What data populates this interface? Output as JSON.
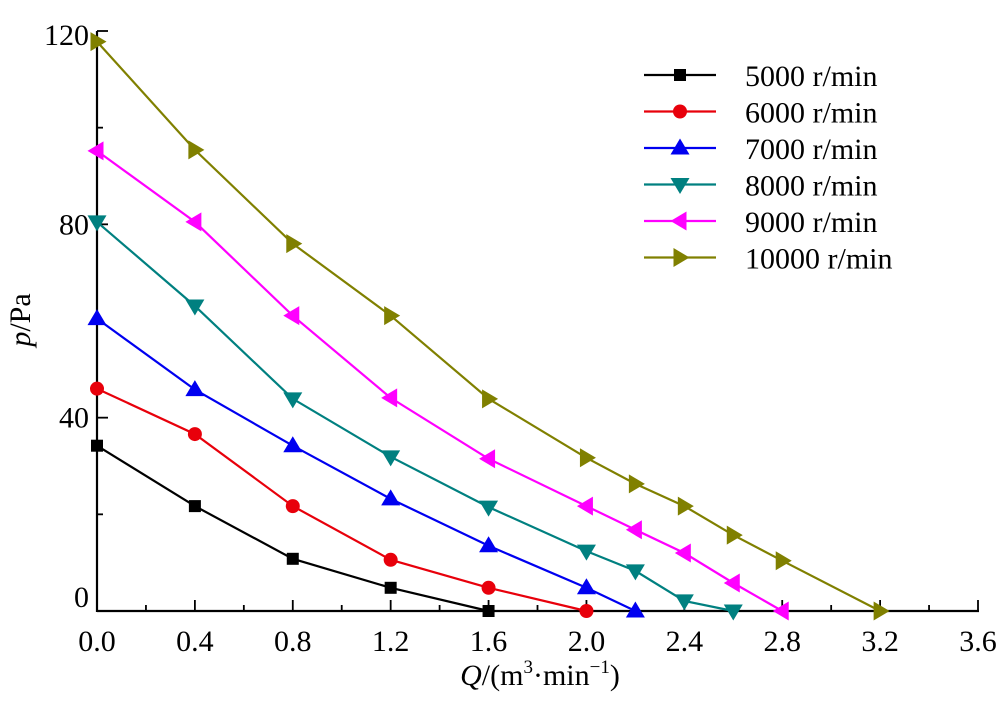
{
  "chart_data": {
    "type": "line",
    "title": "",
    "xlabel": {
      "var": "Q",
      "unit_prefix": "/(m",
      "sup1": "3",
      "mid": "·min",
      "sup2": "−1",
      "unit_suffix": ")"
    },
    "ylabel": {
      "var": "p",
      "unit": "/Pa"
    },
    "xlim": [
      0,
      3.6
    ],
    "ylim": [
      0,
      120
    ],
    "x_ticks": [
      0.0,
      0.4,
      0.8,
      1.2,
      1.6,
      2.0,
      2.4,
      2.8,
      3.2,
      3.6
    ],
    "x_tick_labels": [
      "0.0",
      "0.4",
      "0.8",
      "1.2",
      "1.6",
      "2.0",
      "2.4",
      "2.8",
      "3.2",
      "3.6"
    ],
    "x_minor_ticks": [
      0.2,
      0.6,
      1.0,
      1.4,
      1.8,
      2.2,
      2.6,
      3.0,
      3.4
    ],
    "y_ticks": [
      0,
      40,
      80,
      120
    ],
    "y_tick_labels": [
      "0",
      "40",
      "80",
      "120"
    ],
    "y_minor_ticks": [
      20,
      60,
      100
    ],
    "grid": false,
    "legend_position": "top-right",
    "series": [
      {
        "name": "5000 r/min",
        "color": "#000000",
        "marker": "square",
        "x": [
          0.0,
          0.4,
          0.8,
          1.2,
          1.6
        ],
        "y": [
          34.2,
          21.7,
          10.8,
          4.8,
          0.0
        ]
      },
      {
        "name": "6000 r/min",
        "color": "#e8000b",
        "marker": "circle",
        "x": [
          0.0,
          0.4,
          0.8,
          1.2,
          1.6,
          2.0
        ],
        "y": [
          46.0,
          36.6,
          21.7,
          10.6,
          4.8,
          0.0
        ]
      },
      {
        "name": "7000 r/min",
        "color": "#0000f0",
        "marker": "triangle-up",
        "x": [
          0.0,
          0.4,
          0.8,
          1.2,
          1.6,
          2.0,
          2.2
        ],
        "y": [
          60.5,
          45.8,
          34.2,
          23.2,
          13.5,
          4.8,
          0.0
        ]
      },
      {
        "name": "8000 r/min",
        "color": "#008080",
        "marker": "triangle-down",
        "x": [
          0.0,
          0.4,
          0.8,
          1.2,
          1.6,
          2.0,
          2.2,
          2.4,
          2.6
        ],
        "y": [
          80.5,
          63.1,
          43.9,
          31.9,
          21.5,
          12.4,
          8.3,
          2.1,
          0.0
        ]
      },
      {
        "name": "9000 r/min",
        "color": "#ff00ff",
        "marker": "triangle-left",
        "x": [
          0.0,
          0.4,
          0.8,
          1.2,
          1.6,
          2.0,
          2.2,
          2.4,
          2.6,
          2.8
        ],
        "y": [
          95.2,
          80.5,
          61.1,
          44.1,
          31.5,
          21.7,
          16.8,
          12.0,
          5.8,
          0.0
        ]
      },
      {
        "name": "10000 r/min",
        "color": "#808000",
        "marker": "triangle-right",
        "x": [
          0.0,
          0.4,
          0.8,
          1.2,
          1.6,
          2.0,
          2.2,
          2.4,
          2.6,
          2.8,
          3.2
        ],
        "y": [
          117.8,
          95.4,
          76.0,
          61.1,
          43.9,
          31.7,
          26.3,
          21.7,
          15.7,
          10.4,
          0.0
        ]
      }
    ]
  }
}
